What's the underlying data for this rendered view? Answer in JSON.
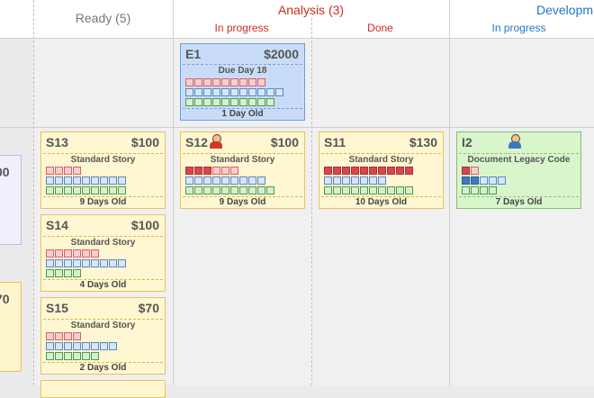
{
  "board": {
    "columns": {
      "ready": {
        "title": "Ready (5)"
      },
      "analysis": {
        "title": "Analysis (3)",
        "in_progress": "In progress",
        "done": "Done"
      },
      "development": {
        "title": "Developm",
        "in_progress": "In progress"
      }
    }
  },
  "partial_cards": {
    "top_value": "00",
    "bottom_value": "70"
  },
  "colors": {
    "analysis": "#d02a20",
    "development": "#1f77c8",
    "ready": "#777777"
  },
  "cards": {
    "e1": {
      "id": "E1",
      "amount": "$2000",
      "kind": "Due Day 18",
      "age": "1 Day Old"
    },
    "s13": {
      "id": "S13",
      "amount": "$100",
      "kind": "Standard Story",
      "age": "9 Days Old"
    },
    "s14": {
      "id": "S14",
      "amount": "$100",
      "kind": "Standard Story",
      "age": "4 Days Old"
    },
    "s15": {
      "id": "S15",
      "amount": "$70",
      "kind": "Standard Story",
      "age": "2 Days Old"
    },
    "s12": {
      "id": "S12",
      "amount": "$100",
      "kind": "Standard Story",
      "age": "9 Days Old"
    },
    "s11": {
      "id": "S11",
      "amount": "$130",
      "kind": "Standard Story",
      "age": "10 Days Old"
    },
    "i2": {
      "id": "I2",
      "amount": "",
      "kind": "Document Legacy Code",
      "age": "7 Days Old"
    }
  }
}
